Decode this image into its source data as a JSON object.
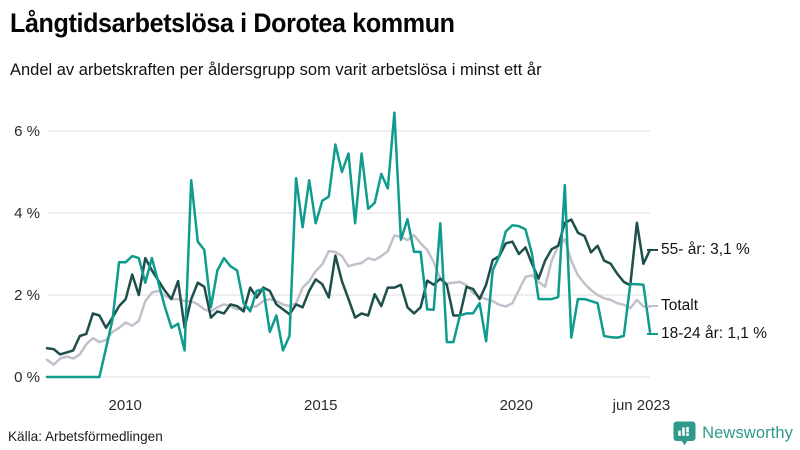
{
  "header": {
    "title": "Långtidsarbetslösa i Dorotea kommun",
    "subtitle": "Andel av arbetskraften per åldersgrupp som varit arbetslösa i minst ett år"
  },
  "footer": {
    "source": "Källa: Arbetsförmedlingen",
    "brand": "Newsworthy"
  },
  "colors": {
    "teal": "#0f9b8e",
    "dark": "#1e4f4a",
    "gray": "#c3c0cb",
    "grid": "#e4e4e4",
    "brand_teal": "#2f9a8b",
    "text": "#141414"
  },
  "chart_data": {
    "type": "line",
    "title": "Långtidsarbetslösa i Dorotea kommun",
    "subtitle": "Andel av arbetskraften per åldersgrupp som varit arbetslösa i minst ett år",
    "unit": "%",
    "grid": "horizontal",
    "legend_position": "right-end-labels",
    "x_start_year": 2008.0,
    "x_end_year": 2023.42,
    "x_end_label": "jun 2023",
    "ylim": [
      0,
      6.6
    ],
    "y_ticks": [
      {
        "label": "0 %",
        "value": 0
      },
      {
        "label": "2 %",
        "value": 2
      },
      {
        "label": "4 %",
        "value": 4
      },
      {
        "label": "6 %",
        "value": 6
      }
    ],
    "x_ticks": [
      {
        "label": "2010",
        "year": 2010
      },
      {
        "label": "2015",
        "year": 2015
      },
      {
        "label": "2020",
        "year": 2020
      },
      {
        "label": "jun 2023",
        "year": 2023.2
      }
    ],
    "series": [
      {
        "name": "Totalt",
        "end_label": "Totalt",
        "end_value": 1.7,
        "color": "#c3c0cb",
        "values": [
          0.42,
          0.3,
          0.45,
          0.5,
          0.45,
          0.55,
          0.8,
          0.95,
          0.85,
          0.9,
          1.1,
          1.2,
          1.33,
          1.25,
          1.37,
          1.85,
          2.06,
          2.1,
          1.98,
          1.9,
          1.9,
          1.85,
          1.85,
          1.77,
          1.65,
          1.6,
          1.7,
          1.77,
          1.73,
          1.65,
          1.7,
          1.7,
          1.73,
          1.85,
          1.9,
          1.85,
          1.77,
          1.73,
          1.8,
          2.18,
          2.34,
          2.58,
          2.75,
          3.07,
          3.05,
          2.95,
          2.7,
          2.75,
          2.78,
          2.9,
          2.85,
          2.95,
          3.07,
          3.45,
          3.42,
          3.34,
          3.46,
          3.26,
          3.1,
          2.8,
          2.4,
          2.28,
          2.3,
          2.32,
          2.24,
          2.05,
          1.96,
          1.9,
          1.85,
          1.76,
          1.72,
          1.8,
          2.12,
          2.44,
          2.48,
          2.32,
          2.2,
          2.84,
          3.2,
          3.36,
          2.84,
          2.48,
          2.28,
          2.12,
          2.0,
          1.92,
          1.88,
          1.8,
          1.76,
          1.68,
          1.88,
          1.72,
          1.72
        ]
      },
      {
        "name": "55- år",
        "end_label": "55- år: 3,1 %",
        "end_value": 3.1,
        "color": "#1e4f4a",
        "values": [
          0.7,
          0.68,
          0.55,
          0.6,
          0.65,
          1.0,
          1.05,
          1.55,
          1.5,
          1.2,
          1.45,
          1.73,
          1.9,
          2.5,
          2.0,
          2.9,
          2.6,
          2.35,
          2.1,
          1.9,
          2.34,
          1.2,
          1.9,
          2.3,
          2.2,
          1.45,
          1.6,
          1.55,
          1.77,
          1.73,
          1.6,
          2.18,
          1.94,
          2.18,
          2.1,
          1.77,
          1.65,
          1.53,
          1.77,
          1.7,
          2.1,
          2.38,
          2.26,
          1.94,
          2.96,
          2.34,
          1.9,
          1.45,
          1.55,
          1.5,
          2.02,
          1.73,
          2.18,
          2.18,
          2.25,
          1.7,
          1.55,
          1.7,
          2.35,
          2.25,
          2.4,
          2.25,
          1.5,
          1.5,
          2.2,
          2.15,
          1.9,
          2.25,
          2.85,
          2.95,
          3.26,
          3.3,
          3.0,
          3.16,
          2.76,
          2.4,
          2.84,
          3.12,
          3.2,
          3.76,
          3.84,
          3.52,
          3.44,
          3.04,
          3.2,
          2.84,
          2.76,
          2.52,
          2.32,
          2.24,
          3.76,
          2.76,
          3.1
        ]
      },
      {
        "name": "18-24 år",
        "end_label": "18-24 år: 1,1 %",
        "end_value": 1.1,
        "color": "#0f9b8e",
        "values": [
          0,
          0,
          0,
          0,
          0,
          0,
          0,
          0,
          0,
          0.7,
          1.4,
          2.8,
          2.8,
          2.95,
          2.9,
          2.3,
          2.9,
          2.3,
          1.7,
          1.2,
          1.3,
          0.65,
          4.8,
          3.3,
          3.1,
          1.7,
          2.6,
          2.9,
          2.7,
          2.6,
          1.8,
          1.6,
          2.1,
          2.15,
          1.1,
          1.5,
          0.65,
          1.0,
          4.85,
          3.65,
          4.8,
          3.75,
          4.3,
          4.4,
          5.67,
          5.0,
          5.45,
          3.75,
          5.45,
          4.1,
          4.25,
          4.95,
          4.6,
          6.45,
          3.35,
          3.85,
          3.05,
          3.05,
          1.65,
          1.64,
          3.75,
          0.85,
          0.85,
          1.5,
          1.55,
          1.55,
          1.8,
          0.87,
          2.6,
          2.95,
          3.55,
          3.7,
          3.68,
          3.6,
          3.0,
          1.9,
          1.9,
          1.9,
          1.95,
          4.68,
          0.96,
          1.9,
          1.9,
          1.85,
          1.8,
          1.0,
          0.97,
          0.96,
          1.0,
          2.27,
          2.26,
          2.25,
          1.1
        ]
      }
    ]
  }
}
